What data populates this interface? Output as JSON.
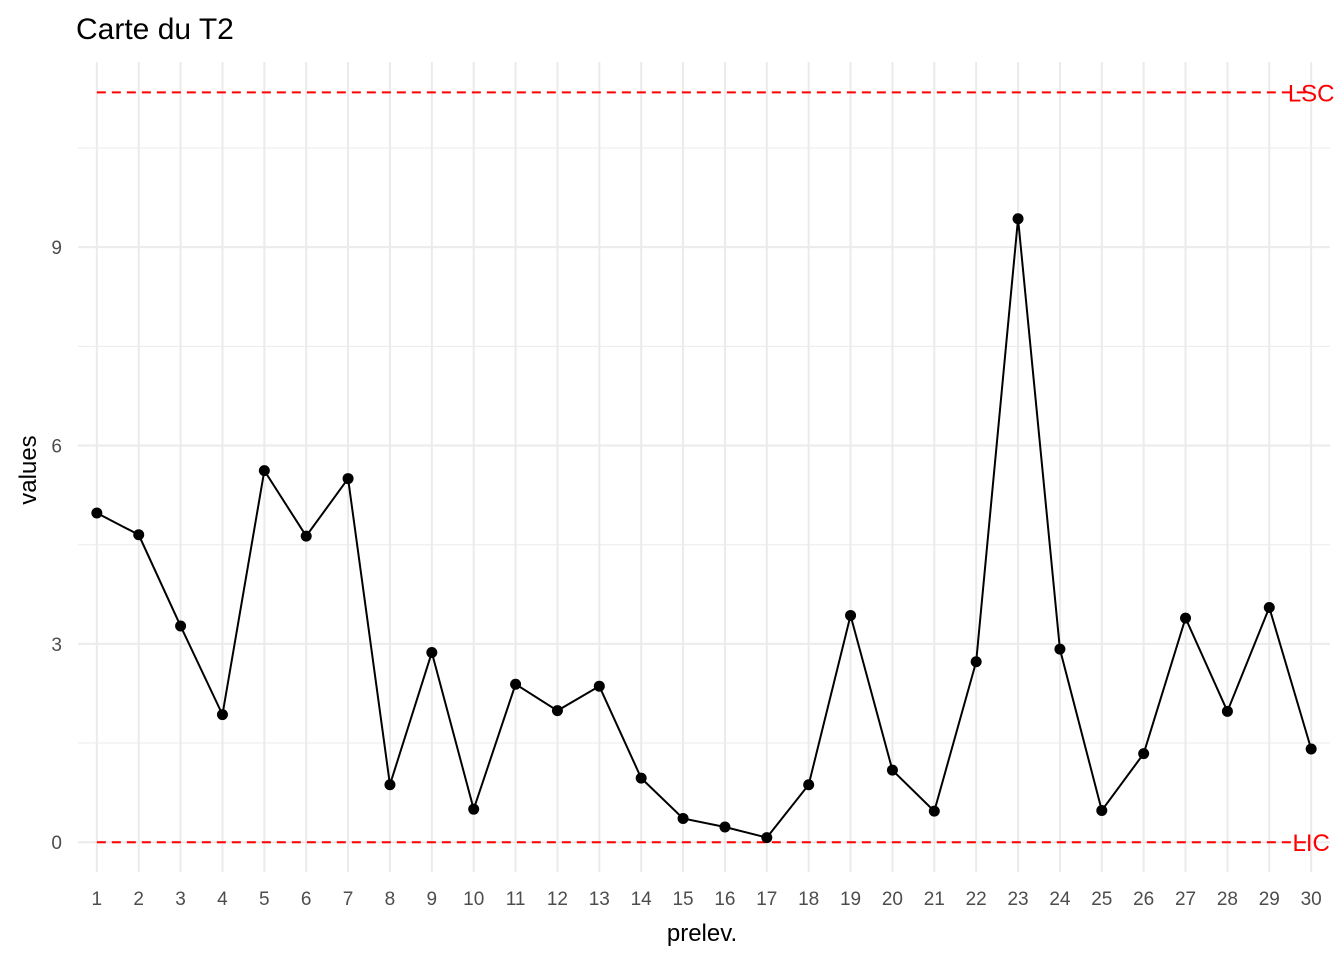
{
  "chart_data": {
    "type": "line",
    "title": "Carte du T2",
    "xlabel": "prelev.",
    "ylabel": "values",
    "x": [
      1,
      2,
      3,
      4,
      5,
      6,
      7,
      8,
      9,
      10,
      11,
      12,
      13,
      14,
      15,
      16,
      17,
      18,
      19,
      20,
      21,
      22,
      23,
      24,
      25,
      26,
      27,
      28,
      29,
      30
    ],
    "x_tick_labels": [
      "1",
      "2",
      "3",
      "4",
      "5",
      "6",
      "7",
      "8",
      "9",
      "10",
      "11",
      "12",
      "13",
      "14",
      "15",
      "16",
      "17",
      "18",
      "19",
      "20",
      "21",
      "22",
      "23",
      "24",
      "25",
      "26",
      "27",
      "28",
      "29",
      "30"
    ],
    "series": [
      {
        "values": [
          4.98,
          4.65,
          3.27,
          1.93,
          5.62,
          4.63,
          5.5,
          0.87,
          2.87,
          0.5,
          2.39,
          1.99,
          2.36,
          0.97,
          0.36,
          0.23,
          0.07,
          0.87,
          3.43,
          1.09,
          0.47,
          2.73,
          9.43,
          2.92,
          0.48,
          1.34,
          3.39,
          1.98,
          3.55,
          1.41
        ],
        "color": "#000000"
      }
    ],
    "y_ticks": [
      0,
      3,
      6,
      9
    ],
    "y_tick_labels": [
      "0",
      "3",
      "6",
      "9"
    ],
    "ylim": [
      -0.45,
      11.8
    ],
    "xlim": [
      0.55,
      30.45
    ],
    "grid": true,
    "reference_lines": [
      {
        "label": "LSC",
        "value": 11.34,
        "color": "#ff0000",
        "style": "dashed"
      },
      {
        "label": "LIC",
        "value": 0,
        "color": "#ff0000",
        "style": "dashed"
      }
    ]
  }
}
